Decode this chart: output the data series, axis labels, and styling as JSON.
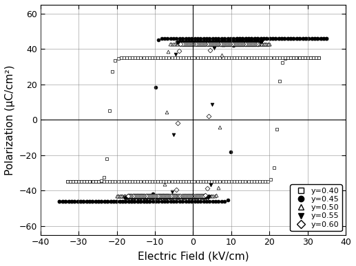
{
  "xlabel": "Electric Field (kV/cm)",
  "ylabel": "Polarization (μC/cm²)",
  "xlim": [
    -40,
    40
  ],
  "ylim": [
    -65,
    65
  ],
  "xticks": [
    -40,
    -30,
    -20,
    -10,
    0,
    10,
    20,
    30,
    40
  ],
  "yticks": [
    -60,
    -40,
    -20,
    0,
    20,
    40,
    60
  ],
  "background_color": "white",
  "figsize": [
    5.17,
    3.87
  ],
  "dpi": 100,
  "loop_params": [
    {
      "Emax": 33,
      "Pmax": 35,
      "Ec": 22,
      "Pr": 28,
      "steepness": 1.2,
      "marker": "s",
      "mfc": "white",
      "label": "y=0.40"
    },
    {
      "Emax": 35,
      "Pmax": 46,
      "Ec": 10,
      "Pr": 42,
      "steepness": 2.5,
      "marker": "o",
      "mfc": "black",
      "label": "y=0.45"
    },
    {
      "Emax": 20,
      "Pmax": 43,
      "Ec": 7,
      "Pr": 38,
      "steepness": 3.0,
      "marker": "^",
      "mfc": "white",
      "label": "y=0.50"
    },
    {
      "Emax": 18,
      "Pmax": 44,
      "Ec": 5,
      "Pr": 37,
      "steepness": 3.5,
      "marker": "v",
      "mfc": "black",
      "label": "y=0.55"
    },
    {
      "Emax": 17,
      "Pmax": 43,
      "Ec": 4,
      "Pr": 36,
      "steepness": 4.0,
      "marker": "D",
      "mfc": "white",
      "label": "y=0.60"
    }
  ]
}
